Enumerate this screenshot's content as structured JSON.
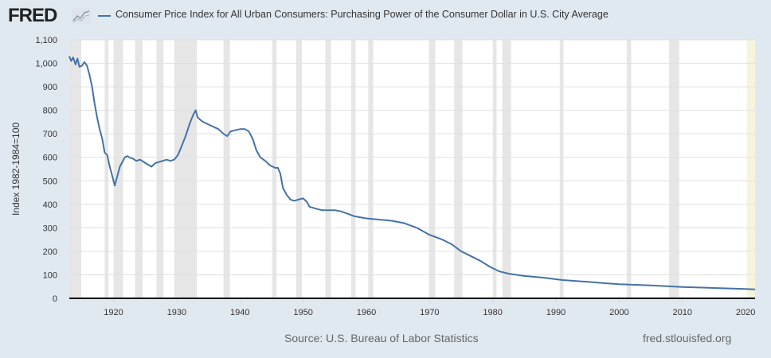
{
  "header": {
    "logo_text": "FRED",
    "logo_icon": "graph-icon",
    "series_title": "Consumer Price Index for All Urban Consumers: Purchasing Power of the Consumer Dollar in U.S. City Average"
  },
  "footer": {
    "source": "Source: U.S. Bureau of Labor Statistics",
    "site": "fred.stlouisfed.org"
  },
  "colors": {
    "series": "#4572a7",
    "recession": "#e6e6e6",
    "recent": "#f5f5dc",
    "background": "#e1e9f0",
    "plot": "#ffffff"
  },
  "chart_data": {
    "type": "line",
    "title": "Consumer Price Index for All Urban Consumers: Purchasing Power of the Consumer Dollar in U.S. City Average",
    "xlabel": "",
    "ylabel": "Index 1982-1984=100",
    "xlim": [
      1913,
      2021.5
    ],
    "ylim": [
      0,
      1100
    ],
    "yticks": [
      0,
      100,
      200,
      300,
      400,
      500,
      600,
      700,
      800,
      900,
      1000,
      1100
    ],
    "ytick_labels": [
      "0",
      "100",
      "200",
      "300",
      "400",
      "500",
      "600",
      "700",
      "800",
      "900",
      "1,000",
      "1,100"
    ],
    "xticks": [
      1920,
      1930,
      1940,
      1950,
      1960,
      1970,
      1980,
      1990,
      2000,
      2010,
      2020
    ],
    "xtick_labels": [
      "1920",
      "1930",
      "1940",
      "1950",
      "1960",
      "1970",
      "1980",
      "1990",
      "2000",
      "2010",
      "2020"
    ],
    "grid": true,
    "legend": "top-left",
    "recessions": [
      [
        1913.0,
        1914.9
      ],
      [
        1918.6,
        1919.2
      ],
      [
        1920.0,
        1921.5
      ],
      [
        1923.4,
        1924.6
      ],
      [
        1926.8,
        1927.9
      ],
      [
        1929.6,
        1933.2
      ],
      [
        1937.4,
        1938.4
      ],
      [
        1945.1,
        1945.8
      ],
      [
        1948.9,
        1949.8
      ],
      [
        1953.5,
        1954.4
      ],
      [
        1957.6,
        1958.3
      ],
      [
        1960.3,
        1961.1
      ],
      [
        1969.9,
        1970.9
      ],
      [
        1973.9,
        1975.2
      ],
      [
        1980.0,
        1980.6
      ],
      [
        1981.5,
        1982.9
      ],
      [
        1990.6,
        1991.2
      ],
      [
        2001.2,
        2001.9
      ],
      [
        2007.9,
        2009.5
      ]
    ],
    "recent_band": [
      2020.2,
      2021.5
    ],
    "series": [
      {
        "name": "Consumer Price Index for All Urban Consumers: Purchasing Power of the Consumer Dollar in U.S. City Average",
        "x": [
          1913.0,
          1913.3,
          1913.6,
          1914.0,
          1914.3,
          1914.6,
          1915.0,
          1915.4,
          1915.8,
          1916.2,
          1916.6,
          1917.0,
          1917.4,
          1917.8,
          1918.2,
          1918.6,
          1919.0,
          1919.4,
          1919.8,
          1920.2,
          1920.6,
          1921.0,
          1921.4,
          1921.8,
          1922.2,
          1922.6,
          1923.0,
          1923.6,
          1924.2,
          1924.8,
          1925.4,
          1926.0,
          1926.6,
          1927.2,
          1927.8,
          1928.4,
          1929.0,
          1929.6,
          1930.2,
          1930.8,
          1931.4,
          1932.0,
          1932.6,
          1933.0,
          1933.3,
          1933.7,
          1934.2,
          1935.0,
          1935.8,
          1936.6,
          1937.4,
          1938.0,
          1938.5,
          1939.2,
          1940.0,
          1940.8,
          1941.4,
          1942.0,
          1942.6,
          1943.2,
          1944.0,
          1944.8,
          1945.6,
          1946.0,
          1946.4,
          1946.8,
          1947.4,
          1948.0,
          1948.6,
          1949.2,
          1950.0,
          1950.6,
          1951.0,
          1951.6,
          1952.2,
          1953.0,
          1954.0,
          1955.0,
          1956.0,
          1957.0,
          1958.0,
          1959.0,
          1960.0,
          1962.0,
          1964.0,
          1966.0,
          1968.0,
          1970.0,
          1972.0,
          1973.5,
          1975.0,
          1976.5,
          1978.0,
          1979.5,
          1981.0,
          1982.5,
          1985.0,
          1988.0,
          1991.0,
          1995.0,
          2000.0,
          2005.0,
          2010.0,
          2015.0,
          2020.0,
          2021.5
        ],
        "values": [
          1030,
          1010,
          1025,
          995,
          1020,
          985,
          990,
          1005,
          990,
          950,
          900,
          830,
          770,
          720,
          680,
          620,
          610,
          560,
          520,
          480,
          520,
          560,
          580,
          600,
          605,
          598,
          595,
          585,
          590,
          580,
          570,
          560,
          575,
          580,
          585,
          590,
          585,
          590,
          610,
          650,
          690,
          740,
          780,
          800,
          770,
          760,
          750,
          740,
          730,
          720,
          700,
          690,
          710,
          715,
          720,
          720,
          710,
          680,
          630,
          600,
          585,
          565,
          555,
          555,
          530,
          470,
          440,
          420,
          415,
          420,
          425,
          410,
          390,
          385,
          380,
          375,
          375,
          375,
          370,
          360,
          350,
          345,
          340,
          335,
          330,
          320,
          300,
          270,
          250,
          230,
          200,
          180,
          160,
          135,
          115,
          105,
          95,
          88,
          78,
          70,
          60,
          55,
          48,
          44,
          40,
          38
        ]
      }
    ]
  }
}
